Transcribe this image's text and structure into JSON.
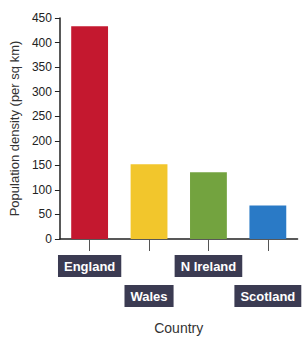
{
  "chart_data": {
    "type": "bar",
    "categories": [
      "England",
      "Wales",
      "N Ireland",
      "Scotland"
    ],
    "values": [
      433,
      152,
      136,
      68
    ],
    "colors": [
      "#c4182f",
      "#f2c62c",
      "#73a33f",
      "#2a7ac6"
    ],
    "xlabel": "Country",
    "ylabel": "Population density (per sq km)",
    "ylim": [
      0,
      450
    ],
    "yticks": [
      0,
      50,
      100,
      150,
      200,
      250,
      300,
      350,
      400,
      450
    ],
    "grid": false
  }
}
